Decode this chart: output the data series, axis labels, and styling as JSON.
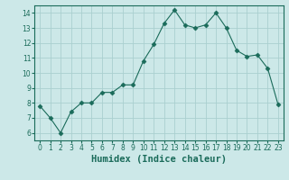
{
  "x": [
    0,
    1,
    2,
    3,
    4,
    5,
    6,
    7,
    8,
    9,
    10,
    11,
    12,
    13,
    14,
    15,
    16,
    17,
    18,
    19,
    20,
    21,
    22,
    23
  ],
  "y": [
    7.8,
    7.0,
    6.0,
    7.4,
    8.0,
    8.0,
    8.7,
    8.7,
    9.2,
    9.2,
    10.8,
    11.9,
    13.3,
    14.2,
    13.2,
    13.0,
    13.2,
    14.0,
    13.0,
    11.5,
    11.1,
    11.2,
    10.3,
    7.9
  ],
  "line_color": "#1a6b5a",
  "marker": "D",
  "markersize": 2.5,
  "bg_color": "#cce8e8",
  "grid_color": "#aacfcf",
  "xlabel": "Humidex (Indice chaleur)",
  "xlim": [
    -0.5,
    23.5
  ],
  "ylim": [
    5.5,
    14.5
  ],
  "yticks": [
    6,
    7,
    8,
    9,
    10,
    11,
    12,
    13,
    14
  ],
  "xticks": [
    0,
    1,
    2,
    3,
    4,
    5,
    6,
    7,
    8,
    9,
    10,
    11,
    12,
    13,
    14,
    15,
    16,
    17,
    18,
    19,
    20,
    21,
    22,
    23
  ],
  "tick_label_fontsize": 5.5,
  "xlabel_fontsize": 7.5
}
